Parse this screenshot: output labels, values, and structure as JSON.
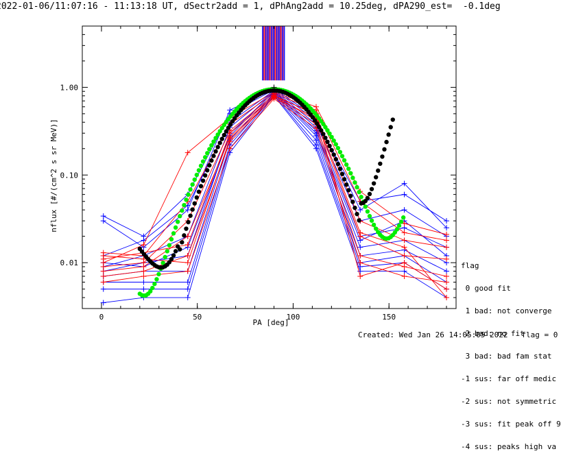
{
  "title": "2022-01-06/11:07:16 - 11:13:18 UT, dSectr2add = 1, dPhAng2add = 10.25deg, dPA290_est=  -0.1deg",
  "footer": {
    "created": "Created: Wed Jan 26 14:05:05 2022",
    "flag": "flag = 0"
  },
  "legend": {
    "heading": "flag",
    "items": [
      " 0 good fit",
      " 1 bad: not converge",
      " 2 bad: no fit",
      " 3 bad: bad fam stat",
      "-1 sus: far off medic",
      "-2 sus: not symmetric",
      "-3 sus: fit peak off 9",
      "-4 sus: peaks high va"
    ]
  },
  "colors": {
    "blue": "#0000ff",
    "red": "#ff0000",
    "green": "#00ee00",
    "black": "#000000",
    "purple": "#800080"
  },
  "chart_data": {
    "type": "line",
    "xlabel": "PA [deg]",
    "ylabel": "nflux [#/(cm^2 s sr MeV)]",
    "xlim": [
      -10,
      185
    ],
    "ylim": [
      0.003,
      5.0
    ],
    "yscale": "log",
    "x_ticks": [
      0,
      50,
      100,
      150
    ],
    "y_ticks": [
      0.01,
      0.1,
      1.0
    ],
    "y_tick_labels": [
      "0.01",
      "0.10",
      "1.00"
    ],
    "pa_bins": [
      1,
      22,
      45,
      67,
      90,
      112,
      135,
      158,
      180
    ],
    "peak_marker": [
      90,
      1.0
    ],
    "peak_band": {
      "x": [
        84,
        96
      ],
      "y": [
        1.2,
        5.0
      ]
    },
    "series": [
      {
        "color": "blue",
        "values": [
          0.034,
          0.02,
          0.06,
          0.5,
          0.94,
          0.42,
          0.05,
          0.06,
          0.03
        ]
      },
      {
        "color": "blue",
        "values": [
          0.012,
          0.018,
          0.045,
          0.4,
          0.92,
          0.38,
          0.03,
          0.04,
          0.02
        ]
      },
      {
        "color": "blue",
        "values": [
          0.009,
          0.012,
          0.02,
          0.35,
          0.9,
          0.35,
          0.02,
          0.025,
          0.015
        ]
      },
      {
        "color": "blue",
        "values": [
          0.008,
          0.01,
          0.012,
          0.3,
          0.88,
          0.3,
          0.015,
          0.018,
          0.01
        ]
      },
      {
        "color": "blue",
        "values": [
          0.007,
          0.008,
          0.008,
          0.25,
          0.86,
          0.28,
          0.012,
          0.014,
          0.008
        ]
      },
      {
        "color": "blue",
        "values": [
          0.006,
          0.006,
          0.006,
          0.22,
          0.84,
          0.25,
          0.01,
          0.012,
          0.006
        ]
      },
      {
        "color": "blue",
        "values": [
          0.005,
          0.005,
          0.005,
          0.2,
          0.82,
          0.22,
          0.009,
          0.01,
          0.005
        ]
      },
      {
        "color": "blue",
        "values": [
          0.0035,
          0.004,
          0.004,
          0.18,
          0.8,
          0.2,
          0.008,
          0.008,
          0.004
        ]
      },
      {
        "color": "blue",
        "values": [
          0.03,
          0.015,
          0.04,
          0.55,
          0.97,
          0.45,
          0.04,
          0.08,
          0.025
        ]
      },
      {
        "color": "blue",
        "values": [
          0.01,
          0.009,
          0.015,
          0.28,
          0.9,
          0.32,
          0.018,
          0.03,
          0.012
        ]
      },
      {
        "color": "red",
        "values": [
          0.01,
          0.016,
          0.18,
          0.45,
          0.88,
          0.6,
          0.065,
          0.028,
          0.021
        ]
      },
      {
        "color": "red",
        "values": [
          0.013,
          0.012,
          0.05,
          0.38,
          0.85,
          0.55,
          0.05,
          0.022,
          0.018
        ]
      },
      {
        "color": "red",
        "values": [
          0.009,
          0.01,
          0.03,
          0.32,
          0.82,
          0.48,
          0.03,
          0.018,
          0.015
        ]
      },
      {
        "color": "red",
        "values": [
          0.008,
          0.009,
          0.02,
          0.27,
          0.8,
          0.42,
          0.02,
          0.012,
          0.011
        ]
      },
      {
        "color": "red",
        "values": [
          0.007,
          0.008,
          0.012,
          0.24,
          0.77,
          0.38,
          0.012,
          0.009,
          0.007
        ]
      },
      {
        "color": "red",
        "values": [
          0.006,
          0.007,
          0.008,
          0.2,
          0.74,
          0.34,
          0.01,
          0.007,
          0.006
        ]
      },
      {
        "color": "red",
        "values": [
          0.011,
          0.013,
          0.016,
          0.3,
          0.79,
          0.5,
          0.007,
          0.01,
          0.005
        ]
      },
      {
        "color": "red",
        "values": [
          0.012,
          0.011,
          0.01,
          0.26,
          0.76,
          0.45,
          0.022,
          0.015,
          0.004
        ]
      }
    ],
    "fits": [
      {
        "color": "green",
        "x_range": [
          20,
          158
        ],
        "center": 90,
        "curve": "green"
      },
      {
        "color": "black",
        "x_range": [
          20,
          152
        ],
        "center": 90,
        "curve": "black"
      }
    ]
  }
}
